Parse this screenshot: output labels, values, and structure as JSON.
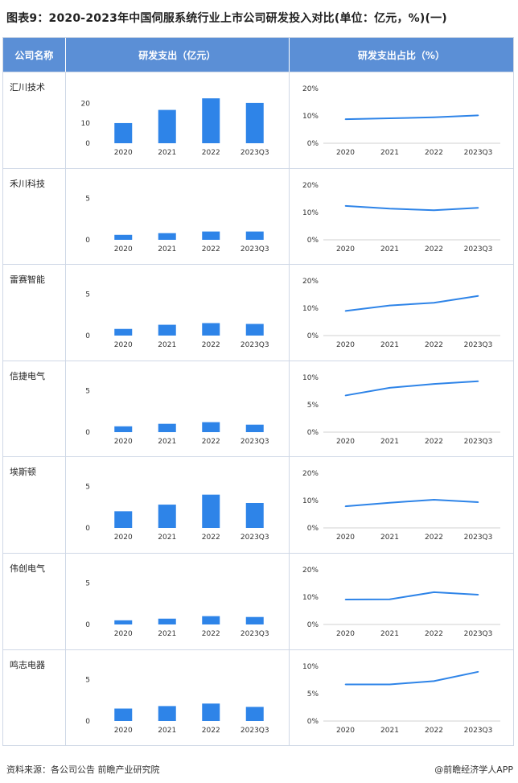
{
  "title": "图表9：2020-2023年中国伺服系统行业上市公司研发投入对比(单位：亿元，%)(一)",
  "header": {
    "col_company": "公司名称",
    "col_spend": "研发支出（亿元）",
    "col_ratio": "研发支出占比（%）"
  },
  "footer": {
    "source": "资料来源：各公司公告 前瞻产业研究院",
    "brand": "@前瞻经济学人APP"
  },
  "colors": {
    "bar": "#2e84e8",
    "line": "#2e84e8",
    "header": "#5b8fd6"
  },
  "chart_data": [
    {
      "company": "汇川技术",
      "spend": {
        "type": "bar",
        "categories": [
          "2020",
          "2021",
          "2022",
          "2023Q3"
        ],
        "values": [
          10.1,
          16.7,
          22.5,
          20.2
        ],
        "ylim": [
          0,
          25
        ],
        "yticks": [
          "0",
          "10",
          "20"
        ],
        "ytick_values": [
          0,
          10,
          20
        ]
      },
      "ratio": {
        "type": "line",
        "categories": [
          "2020",
          "2021",
          "2022",
          "2023Q3"
        ],
        "values": [
          8.8,
          9.1,
          9.5,
          10.2
        ],
        "ylim": [
          0,
          20
        ],
        "yticks": [
          "0%",
          "10%",
          "20%"
        ],
        "ytick_values": [
          0,
          10,
          20
        ]
      }
    },
    {
      "company": "禾川科技",
      "spend": {
        "type": "bar",
        "categories": [
          "2020",
          "2021",
          "2022",
          "2023Q3"
        ],
        "values": [
          0.6,
          0.8,
          1.0,
          1.0
        ],
        "ylim": [
          0,
          6
        ],
        "yticks": [
          "0",
          "5"
        ],
        "ytick_values": [
          0,
          5
        ]
      },
      "ratio": {
        "type": "line",
        "categories": [
          "2020",
          "2021",
          "2022",
          "2023Q3"
        ],
        "values": [
          12.4,
          11.4,
          10.8,
          11.7
        ],
        "ylim": [
          0,
          20
        ],
        "yticks": [
          "0%",
          "10%",
          "20%"
        ],
        "ytick_values": [
          0,
          10,
          20
        ]
      }
    },
    {
      "company": "雷赛智能",
      "spend": {
        "type": "bar",
        "categories": [
          "2020",
          "2021",
          "2022",
          "2023Q3"
        ],
        "values": [
          0.8,
          1.3,
          1.5,
          1.4
        ],
        "ylim": [
          0,
          6
        ],
        "yticks": [
          "0",
          "5"
        ],
        "ytick_values": [
          0,
          5
        ]
      },
      "ratio": {
        "type": "line",
        "categories": [
          "2020",
          "2021",
          "2022",
          "2023Q3"
        ],
        "values": [
          9.0,
          11.0,
          12.0,
          14.5
        ],
        "ylim": [
          0,
          20
        ],
        "yticks": [
          "0%",
          "10%",
          "20%"
        ],
        "ytick_values": [
          0,
          10,
          20
        ]
      }
    },
    {
      "company": "信捷电气",
      "spend": {
        "type": "bar",
        "categories": [
          "2020",
          "2021",
          "2022",
          "2023Q3"
        ],
        "values": [
          0.7,
          1.0,
          1.2,
          0.9
        ],
        "ylim": [
          0,
          6
        ],
        "yticks": [
          "0",
          "5"
        ],
        "ytick_values": [
          0,
          5
        ]
      },
      "ratio": {
        "type": "line",
        "categories": [
          "2020",
          "2021",
          "2022",
          "2023Q3"
        ],
        "values": [
          6.7,
          8.1,
          8.8,
          9.3
        ],
        "ylim": [
          0,
          10
        ],
        "yticks": [
          "0%",
          "5%",
          "10%"
        ],
        "ytick_values": [
          0,
          5,
          10
        ]
      }
    },
    {
      "company": "埃斯顿",
      "spend": {
        "type": "bar",
        "categories": [
          "2020",
          "2021",
          "2022",
          "2023Q3"
        ],
        "values": [
          2.0,
          2.8,
          4.0,
          3.0
        ],
        "ylim": [
          0,
          6
        ],
        "yticks": [
          "0",
          "5"
        ],
        "ytick_values": [
          0,
          5
        ]
      },
      "ratio": {
        "type": "line",
        "categories": [
          "2020",
          "2021",
          "2022",
          "2023Q3"
        ],
        "values": [
          7.9,
          9.2,
          10.3,
          9.4
        ],
        "ylim": [
          0,
          20
        ],
        "yticks": [
          "0%",
          "10%",
          "20%"
        ],
        "ytick_values": [
          0,
          10,
          20
        ]
      }
    },
    {
      "company": "伟创电气",
      "spend": {
        "type": "bar",
        "categories": [
          "2020",
          "2021",
          "2022",
          "2023Q3"
        ],
        "values": [
          0.5,
          0.7,
          1.0,
          0.9
        ],
        "ylim": [
          0,
          6
        ],
        "yticks": [
          "0",
          "5"
        ],
        "ytick_values": [
          0,
          5
        ]
      },
      "ratio": {
        "type": "line",
        "categories": [
          "2020",
          "2021",
          "2022",
          "2023Q3"
        ],
        "values": [
          9.1,
          9.2,
          11.8,
          10.9
        ],
        "ylim": [
          0,
          20
        ],
        "yticks": [
          "0%",
          "10%",
          "20%"
        ],
        "ytick_values": [
          0,
          10,
          20
        ]
      }
    },
    {
      "company": "鸣志电器",
      "spend": {
        "type": "bar",
        "categories": [
          "2020",
          "2021",
          "2022",
          "2023Q3"
        ],
        "values": [
          1.5,
          1.8,
          2.1,
          1.7
        ],
        "ylim": [
          0,
          6
        ],
        "yticks": [
          "0",
          "5"
        ],
        "ytick_values": [
          0,
          5
        ]
      },
      "ratio": {
        "type": "line",
        "categories": [
          "2020",
          "2021",
          "2022",
          "2023Q3"
        ],
        "values": [
          6.7,
          6.7,
          7.3,
          9.0
        ],
        "ylim": [
          0,
          10
        ],
        "yticks": [
          "0%",
          "5%",
          "10%"
        ],
        "ytick_values": [
          0,
          5,
          10
        ]
      }
    }
  ]
}
